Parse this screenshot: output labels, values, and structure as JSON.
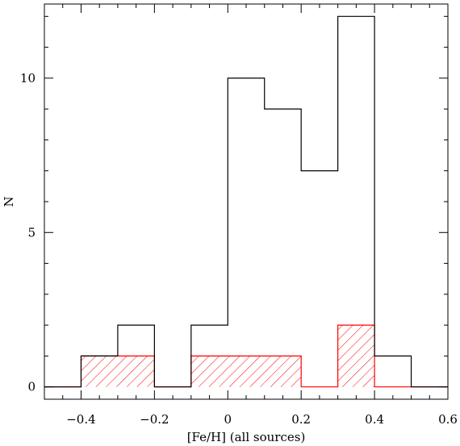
{
  "chart_data": {
    "type": "bar",
    "subtype": "step-histogram",
    "xlabel": "[Fe/H] (all sources)",
    "ylabel": "N",
    "xlim": [
      -0.5,
      0.6
    ],
    "ylim": [
      -0.4,
      12.4
    ],
    "x_ticks": [
      "-0.4",
      "-0.2",
      "0",
      "0.2",
      "0.4",
      "0.6"
    ],
    "x_tick_values": [
      -0.4,
      -0.2,
      0,
      0.2,
      0.4,
      0.6
    ],
    "y_ticks": [
      "0",
      "5",
      "10"
    ],
    "y_tick_values": [
      0,
      5,
      10
    ],
    "bin_edges": [
      -0.5,
      -0.4,
      -0.3,
      -0.2,
      -0.1,
      0.0,
      0.1,
      0.2,
      0.3,
      0.4,
      0.5,
      0.6
    ],
    "series": [
      {
        "style": "black-outline-step",
        "color": "#000000",
        "values": [
          0,
          1,
          2,
          0,
          2,
          10,
          9,
          7,
          12,
          1,
          0
        ]
      },
      {
        "style": "red-hatched-step",
        "color": "#ff0000",
        "values": [
          0,
          1,
          1,
          0,
          1,
          1,
          1,
          0,
          2,
          0,
          0
        ]
      }
    ],
    "grid": false,
    "legend": "none"
  }
}
